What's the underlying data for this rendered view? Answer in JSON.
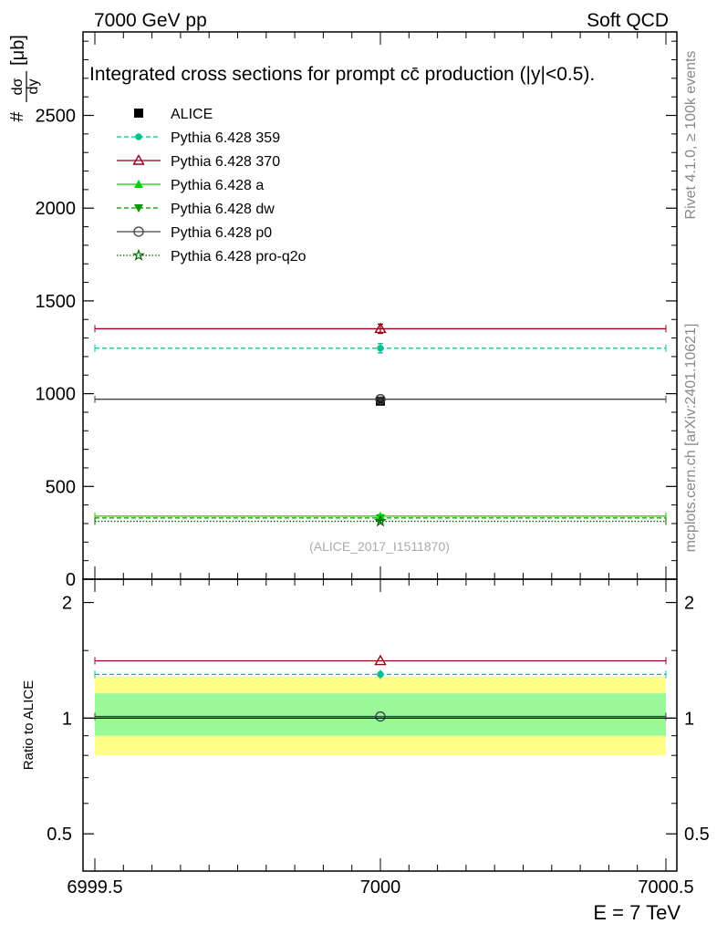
{
  "header": {
    "left": "7000 GeV pp",
    "right": "Soft QCD"
  },
  "side_labels": {
    "rivet": "Rivet 4.1.0, ≥ 100k events",
    "mcplots": "mcplots.cern.ch [arXiv:2401.10621]"
  },
  "x_axis_label": "E = 7 TeV",
  "chart_data": [
    {
      "type": "scatter",
      "title": "Integrated cross sections for prompt cc̄ production (|y|<0.5).",
      "title_main": "Integrated cross sections for prompt c",
      "title_cbar": "c̄",
      "title_rest": " production (|y|<0.5).",
      "ylabel_prefix": "#",
      "ylabel_num": "dσ",
      "ylabel_den": "dy",
      "ylabel_unit": "[μb]",
      "watermark": "(ALICE_2017_I1511870)",
      "xlim": [
        6999.5,
        7000.5
      ],
      "ylim": [
        0,
        2950
      ],
      "yticks": [
        0,
        500,
        1000,
        1500,
        2000,
        2500
      ],
      "ytick_labels": [
        "0",
        "500",
        "1000",
        "1500",
        "2000",
        "2500"
      ],
      "legend_position": "top-left",
      "series": [
        {
          "name": "ALICE",
          "color": "#000000",
          "marker": "square",
          "line": "none",
          "x": 7000,
          "y": 960,
          "err": 15,
          "halfwidth": 0
        },
        {
          "name": "Pythia 6.428 359",
          "color": "#00c08f",
          "marker": "dot",
          "line": "dashed",
          "x": 7000,
          "y": 1245,
          "err": 25,
          "halfwidth": 0.5
        },
        {
          "name": "Pythia 6.428 370",
          "color": "#99001a",
          "marker": "triangle-open",
          "line": "solid",
          "x": 7000,
          "y": 1350,
          "err": 25,
          "halfwidth": 0.5
        },
        {
          "name": "Pythia 6.428 a",
          "color": "#00d400",
          "marker": "triangle",
          "line": "solid",
          "x": 7000,
          "y": 340,
          "err": 8,
          "halfwidth": 0.5
        },
        {
          "name": "Pythia 6.428 dw",
          "color": "#009900",
          "marker": "triangle-down",
          "line": "dashed",
          "x": 7000,
          "y": 330,
          "err": 8,
          "halfwidth": 0.5
        },
        {
          "name": "Pythia 6.428 p0",
          "color": "#404040",
          "marker": "circle-open",
          "line": "solid",
          "x": 7000,
          "y": 970,
          "err": 10,
          "halfwidth": 0.5
        },
        {
          "name": "Pythia 6.428 pro-q2o",
          "color": "#006600",
          "marker": "star",
          "line": "dotted",
          "x": 7000,
          "y": 312,
          "err": 6,
          "halfwidth": 0.5
        }
      ]
    },
    {
      "type": "scatter",
      "ylabel": "Ratio to ALICE",
      "xlim": [
        6999.5,
        7000.5
      ],
      "ylim": [
        0.4,
        2.3
      ],
      "yticks": [
        0.5,
        1,
        2
      ],
      "ytick_labels": [
        "0.5",
        "1",
        "2"
      ],
      "xticks": [
        6999.5,
        7000,
        7000.5
      ],
      "xtick_labels": [
        "6999.5",
        "7000",
        "7000.5"
      ],
      "bands": [
        {
          "name": "outer",
          "color": "#ffff88",
          "lo": 0.8,
          "hi": 1.28
        },
        {
          "name": "inner",
          "color": "#99f999",
          "lo": 0.9,
          "hi": 1.16
        }
      ],
      "series": [
        {
          "name": "Pythia 6.428 359",
          "y": 1.3
        },
        {
          "name": "Pythia 6.428 370",
          "y": 1.41
        },
        {
          "name": "Pythia 6.428 p0",
          "y": 1.01
        },
        {
          "name": "ALICE",
          "y": 1.0
        }
      ]
    }
  ]
}
